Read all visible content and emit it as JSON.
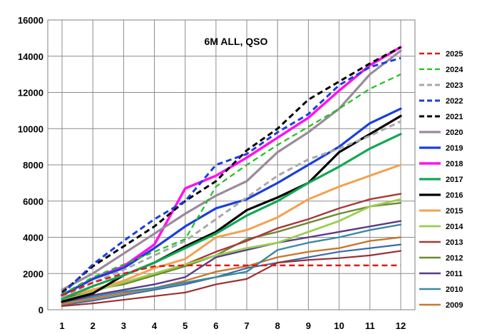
{
  "chart_data": {
    "type": "line",
    "title": "6M ALL, QSO",
    "xlabel": "",
    "ylabel": "",
    "x": [
      1,
      2,
      3,
      4,
      5,
      6,
      7,
      8,
      9,
      10,
      11,
      12
    ],
    "xlim": [
      1,
      12
    ],
    "ylim": [
      0,
      16000
    ],
    "yticks": [
      0,
      2000,
      4000,
      6000,
      8000,
      10000,
      12000,
      14000,
      16000
    ],
    "grid": true,
    "legend_position": "right",
    "series": [
      {
        "name": "2025",
        "color": "#e01818",
        "dash": "dashed",
        "width": 2.5,
        "values": [
          800,
          1500,
          2000,
          2400,
          2450,
          2450,
          2450,
          2450,
          2450,
          2450,
          2450,
          2450
        ]
      },
      {
        "name": "2024",
        "color": "#1ec21e",
        "dash": "dashed",
        "width": 2.2,
        "values": [
          850,
          1800,
          2500,
          3200,
          3900,
          6800,
          8000,
          9100,
          10100,
          11100,
          12200,
          13000
        ]
      },
      {
        "name": "2023",
        "color": "#a8a8a8",
        "dash": "dashed",
        "width": 3,
        "values": [
          700,
          1500,
          2200,
          3000,
          3800,
          5000,
          6200,
          7400,
          8300,
          8900,
          9600,
          10400
        ]
      },
      {
        "name": "2022",
        "color": "#1a3ee0",
        "dash": "dashed",
        "width": 3,
        "values": [
          850,
          2500,
          3800,
          5000,
          6000,
          8000,
          8600,
          9800,
          10800,
          12400,
          13400,
          13900
        ]
      },
      {
        "name": "2021",
        "color": "#000000",
        "dash": "dashed",
        "width": 3,
        "values": [
          950,
          2400,
          3500,
          4600,
          6000,
          7100,
          8800,
          10000,
          11600,
          12600,
          13600,
          14500
        ]
      },
      {
        "name": "2020",
        "color": "#9a8a9a",
        "dash": "solid",
        "width": 3.2,
        "values": [
          1100,
          2000,
          3100,
          4200,
          5300,
          6300,
          7100,
          8700,
          9800,
          11100,
          13000,
          14300
        ]
      },
      {
        "name": "2019",
        "color": "#1a3ee0",
        "dash": "solid",
        "width": 3.2,
        "values": [
          800,
          1700,
          2300,
          3400,
          4600,
          5600,
          6100,
          7000,
          8000,
          9000,
          10300,
          11100
        ]
      },
      {
        "name": "2018",
        "color": "#ff10f0",
        "dash": "solid",
        "width": 3.5,
        "values": [
          800,
          1700,
          2400,
          3600,
          6700,
          7400,
          8400,
          9500,
          10600,
          12100,
          13500,
          14500
        ]
      },
      {
        "name": "2017",
        "color": "#10a850",
        "dash": "solid",
        "width": 3.2,
        "values": [
          600,
          1300,
          1900,
          2600,
          3400,
          4200,
          5200,
          6000,
          7000,
          7900,
          8900,
          9700
        ]
      },
      {
        "name": "2016",
        "color": "#000000",
        "dash": "solid",
        "width": 3.2,
        "values": [
          450,
          900,
          1900,
          2600,
          3500,
          4300,
          5500,
          6200,
          7000,
          8700,
          9700,
          10700
        ]
      },
      {
        "name": "2015",
        "color": "#f5a050",
        "dash": "solid",
        "width": 3,
        "values": [
          700,
          1100,
          1600,
          2300,
          2800,
          4000,
          4400,
          5100,
          6100,
          6800,
          7400,
          8000
        ]
      },
      {
        "name": "2014",
        "color": "#9acd50",
        "dash": "solid",
        "width": 2.8,
        "values": [
          500,
          1000,
          1500,
          2000,
          2500,
          3000,
          3400,
          3700,
          4300,
          4900,
          5700,
          6100
        ]
      },
      {
        "name": "2013",
        "color": "#a83838",
        "dash": "solid",
        "width": 2.4,
        "values": [
          600,
          1000,
          1500,
          2000,
          2500,
          3200,
          3800,
          4500,
          5000,
          5600,
          6100,
          6400
        ]
      },
      {
        "name": "2012",
        "color": "#6a8a30",
        "dash": "solid",
        "width": 2.4,
        "values": [
          700,
          1100,
          1400,
          1900,
          2400,
          3000,
          3900,
          4300,
          4800,
          5300,
          5700,
          5900
        ]
      },
      {
        "name": "2011",
        "color": "#5a3a8a",
        "dash": "solid",
        "width": 2.4,
        "values": [
          400,
          800,
          1100,
          1400,
          1800,
          2900,
          3300,
          3700,
          4000,
          4300,
          4600,
          4900
        ]
      },
      {
        "name": "2010",
        "color": "#3a8aa0",
        "dash": "solid",
        "width": 2.4,
        "values": [
          400,
          700,
          1000,
          1200,
          1500,
          1800,
          2100,
          3300,
          3700,
          4000,
          4400,
          4700
        ]
      },
      {
        "name": "2009",
        "color": "#c87830",
        "dash": "solid",
        "width": 2.4,
        "values": [
          300,
          600,
          900,
          1200,
          1600,
          2100,
          2400,
          2900,
          3200,
          3400,
          3800,
          4000
        ]
      },
      {
        "name": "",
        "color": "#9a3030",
        "dash": "solid",
        "width": 2.2,
        "values": [
          200,
          350,
          550,
          750,
          950,
          1400,
          1700,
          2600,
          2750,
          2850,
          3000,
          3250
        ]
      },
      {
        "name": "",
        "color": "#3a6aa8",
        "dash": "solid",
        "width": 2.2,
        "values": [
          250,
          500,
          800,
          1100,
          1400,
          1800,
          2300,
          2600,
          2900,
          3200,
          3400,
          3600
        ]
      }
    ]
  }
}
